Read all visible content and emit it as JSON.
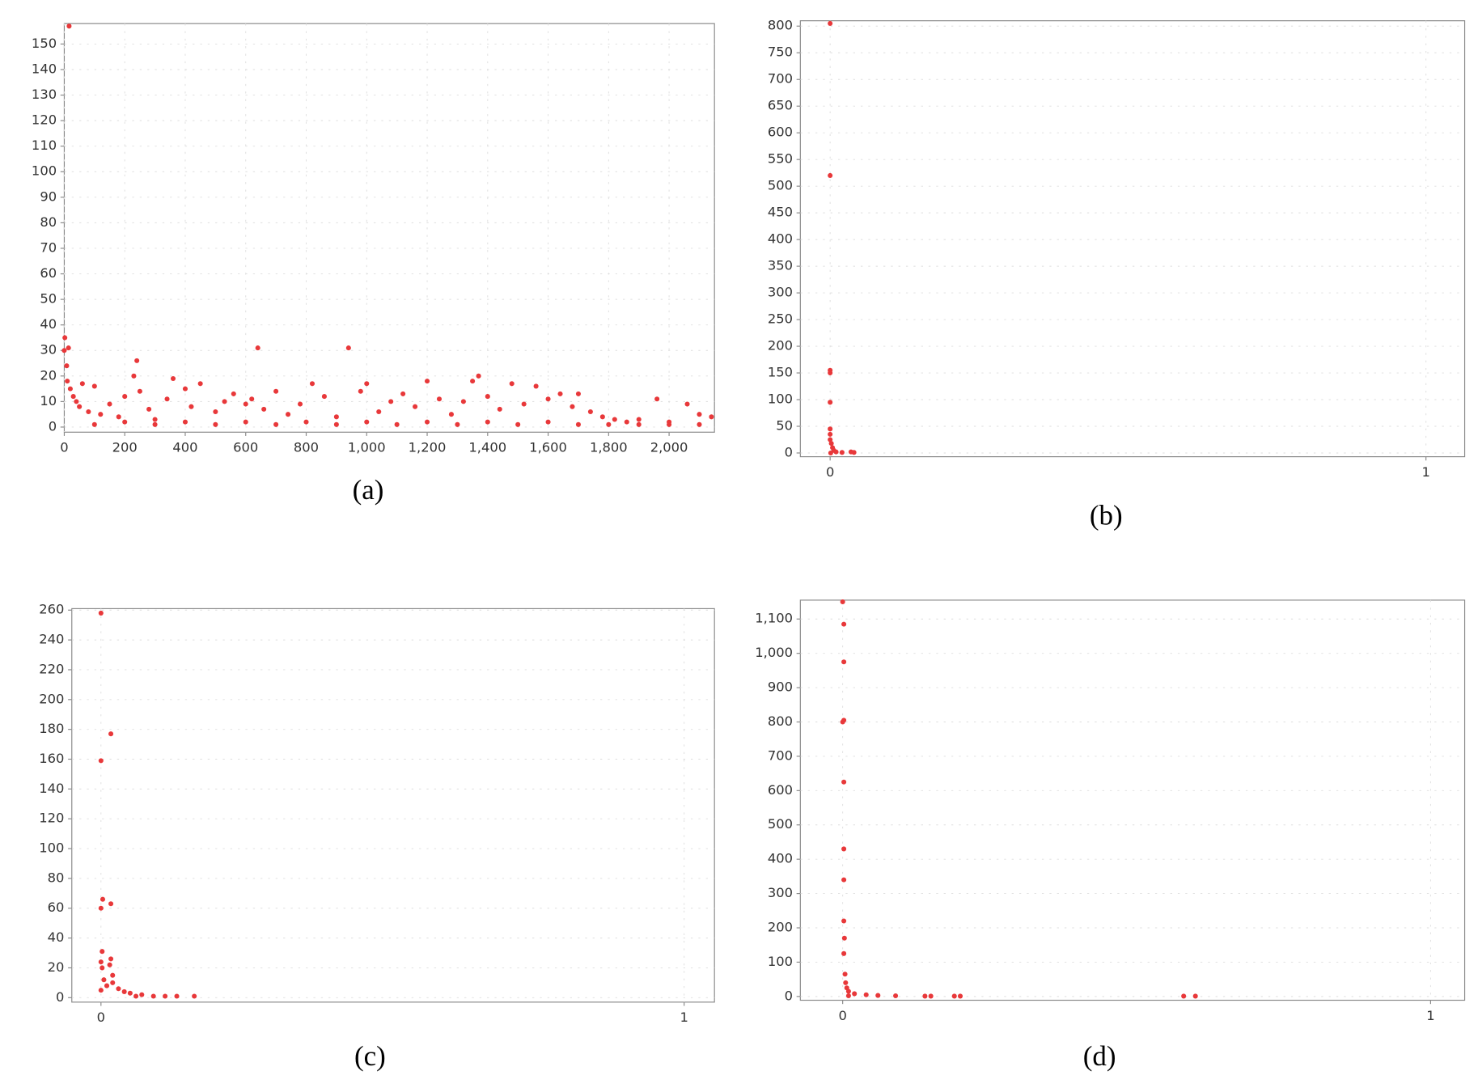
{
  "chart_data": [
    {
      "type": "scatter",
      "caption": "(a)",
      "color": "#e8383a",
      "grid": true,
      "xlim": [
        0,
        2150
      ],
      "ylim": [
        -2,
        158
      ],
      "xticks": [
        0,
        200,
        400,
        600,
        800,
        {
          "value": 1000,
          "label": "1,000"
        },
        {
          "value": 1200,
          "label": "1,200"
        },
        {
          "value": 1400,
          "label": "1,400"
        },
        {
          "value": 1600,
          "label": "1,600"
        },
        {
          "value": 1800,
          "label": "1,800"
        },
        {
          "value": 2000,
          "label": "2,000"
        }
      ],
      "yticks": [
        0,
        10,
        20,
        30,
        40,
        50,
        60,
        70,
        80,
        90,
        100,
        110,
        120,
        130,
        140,
        150
      ],
      "x": [
        16,
        2,
        0,
        14,
        8,
        10,
        20,
        30,
        40,
        50,
        60,
        80,
        100,
        120,
        150,
        180,
        200,
        230,
        240,
        250,
        280,
        300,
        340,
        360,
        400,
        420,
        450,
        500,
        530,
        560,
        600,
        620,
        640,
        660,
        700,
        740,
        780,
        820,
        860,
        900,
        940,
        980,
        1000,
        1040,
        1080,
        1120,
        1160,
        1200,
        1240,
        1280,
        1320,
        1350,
        1370,
        1400,
        1440,
        1480,
        1520,
        1560,
        1600,
        1640,
        1680,
        1700,
        1740,
        1780,
        1820,
        1860,
        1900,
        1960,
        2000,
        2060,
        2100,
        2140,
        100,
        300,
        500,
        700,
        900,
        1100,
        1300,
        1500,
        1700,
        1900,
        2100,
        200,
        400,
        600,
        800,
        1000,
        1200,
        1400,
        1600,
        1800,
        2000
      ],
      "y": [
        157,
        35,
        30,
        31,
        24,
        18,
        15,
        12,
        10,
        8,
        17,
        6,
        16,
        5,
        9,
        4,
        12,
        20,
        26,
        14,
        7,
        3,
        11,
        19,
        15,
        8,
        17,
        6,
        10,
        13,
        9,
        11,
        31,
        7,
        14,
        5,
        9,
        17,
        12,
        4,
        31,
        14,
        17,
        6,
        10,
        13,
        8,
        18,
        11,
        5,
        10,
        18,
        20,
        12,
        7,
        17,
        9,
        16,
        11,
        13,
        8,
        13,
        6,
        4,
        3,
        2,
        3,
        11,
        2,
        9,
        5,
        4,
        1,
        1,
        1,
        1,
        1,
        1,
        1,
        1,
        1,
        1,
        1,
        2,
        2,
        2,
        2,
        2,
        2,
        2,
        2,
        1,
        1
      ]
    },
    {
      "type": "scatter",
      "caption": "(b)",
      "color": "#e8383a",
      "grid": true,
      "xlim": [
        -0.05,
        1.065
      ],
      "ylim": [
        -7,
        810
      ],
      "xticks": [
        0,
        1
      ],
      "yticks": [
        0,
        50,
        100,
        150,
        200,
        250,
        300,
        350,
        400,
        450,
        500,
        550,
        600,
        650,
        700,
        750,
        800
      ],
      "x": [
        0,
        0,
        0,
        0,
        0,
        0,
        0,
        0,
        0.002,
        0.004,
        0.006,
        0.01,
        0.02,
        0.04,
        0.035,
        0.001
      ],
      "y": [
        805,
        520,
        155,
        150,
        95,
        45,
        35,
        25,
        18,
        10,
        5,
        2,
        1,
        1,
        2,
        0
      ]
    },
    {
      "type": "scatter",
      "caption": "(c)",
      "color": "#e8383a",
      "grid": true,
      "xlim": [
        -0.05,
        1.052
      ],
      "ylim": [
        -3,
        261
      ],
      "xticks": [
        0,
        1
      ],
      "yticks": [
        0,
        20,
        40,
        60,
        80,
        100,
        120,
        140,
        160,
        180,
        200,
        220,
        240,
        260
      ],
      "x": [
        0,
        0.017,
        0,
        0.003,
        0,
        0.017,
        0.002,
        0,
        0.002,
        0.017,
        0.015,
        0.02,
        0.005,
        0.01,
        0.03,
        0.04,
        0.05,
        0.07,
        0.09,
        0.11,
        0.16,
        0.13,
        0.06,
        0.02,
        0
      ],
      "y": [
        258,
        177,
        159,
        66,
        60,
        63,
        31,
        24,
        20,
        26,
        22,
        15,
        12,
        8,
        6,
        4,
        3,
        2,
        1,
        1,
        1,
        1,
        1,
        10,
        5
      ]
    },
    {
      "type": "scatter",
      "caption": "(d)",
      "color": "#e8383a",
      "grid": true,
      "xlim": [
        -0.072,
        1.058
      ],
      "ylim": [
        -11,
        1155
      ],
      "xticks": [
        0,
        1
      ],
      "yticks": [
        0,
        100,
        200,
        300,
        400,
        500,
        600,
        700,
        800,
        900,
        {
          "value": 1000,
          "label": "1,000"
        },
        {
          "value": 1100,
          "label": "1,100"
        }
      ],
      "x": [
        0,
        0.002,
        0.002,
        0.002,
        0,
        0.002,
        0.002,
        0.002,
        0.002,
        0.003,
        0.002,
        0.004,
        0.005,
        0.007,
        0.01,
        0.02,
        0.04,
        0.06,
        0.09,
        0.14,
        0.15,
        0.19,
        0.2,
        0.58,
        0.6,
        0.01
      ],
      "y": [
        1150,
        1085,
        975,
        805,
        800,
        625,
        430,
        340,
        220,
        170,
        125,
        65,
        40,
        25,
        15,
        8,
        5,
        3,
        2,
        1,
        1,
        1,
        1,
        1,
        1,
        2
      ]
    }
  ]
}
